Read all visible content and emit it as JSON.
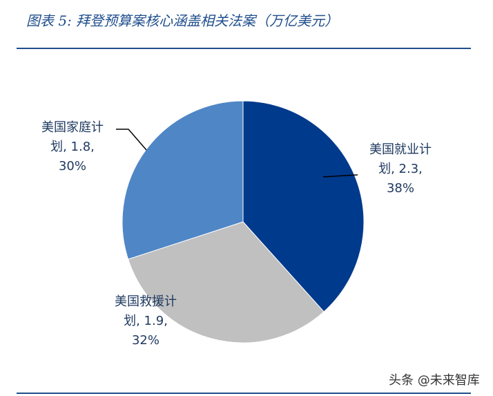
{
  "title": "图表 5: 拜登预算案核心涵盖相关法案（万亿美元）",
  "watermark": "头条 @未来智库",
  "colors": {
    "title": "#1f4e8c",
    "rule": "#1f4e8c",
    "label": "#1f3a60"
  },
  "chart_data": {
    "type": "pie",
    "title": "图表 5: 拜登预算案核心涵盖相关法案（万亿美元）",
    "start": "12 o'clock",
    "direction": "clockwise",
    "slices": [
      {
        "name": "美国就业计划",
        "value": 2.3,
        "percent": 38,
        "color": "#003a8c",
        "label_lines": [
          "美国就业计",
          "划, 2.3,",
          "38%"
        ]
      },
      {
        "name": "美国救援计划",
        "value": 1.9,
        "percent": 32,
        "color": "#c0c0c0",
        "label_lines": [
          "美国救援计",
          "划, 1.9,",
          "32%"
        ]
      },
      {
        "name": "美国家庭计划",
        "value": 1.8,
        "percent": 30,
        "color": "#4f86c6",
        "label_lines": [
          "美国家庭计",
          "划, 1.8,",
          "30%"
        ]
      }
    ]
  }
}
